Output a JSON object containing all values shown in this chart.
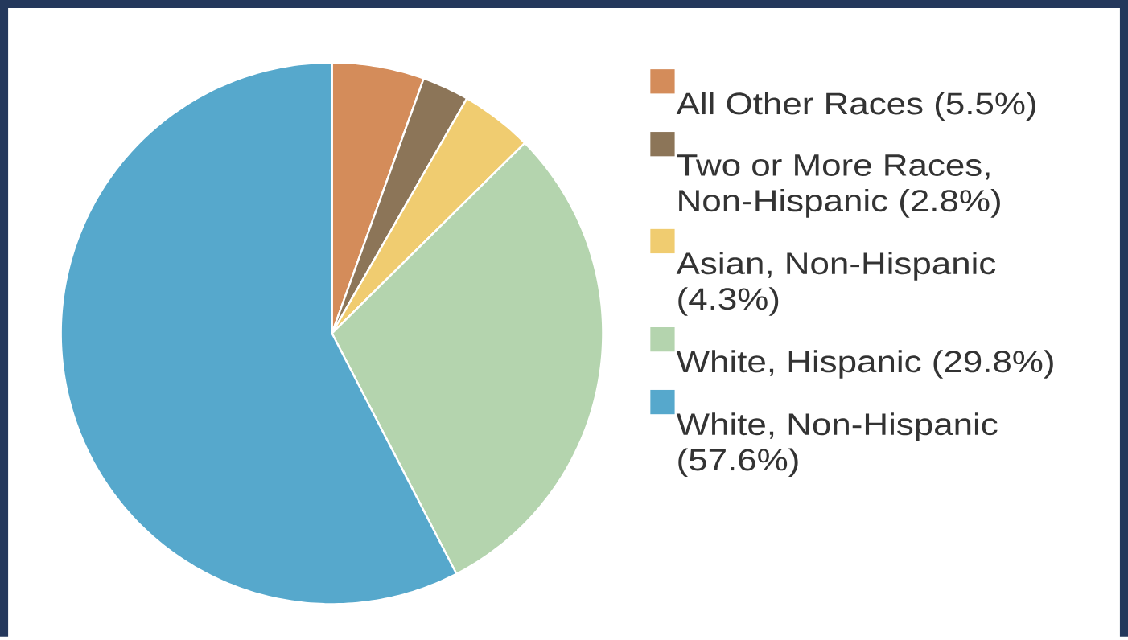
{
  "chart_data": {
    "type": "pie",
    "categories": [
      "All Other Races (5.5%)",
      "Two or More Races, Non-Hispanic (2.8%)",
      "Asian, Non-Hispanic (4.3%)",
      "White, Hispanic (29.8%)",
      "White, Non-Hispanic (57.6%)"
    ],
    "values": [
      5.5,
      2.8,
      4.3,
      29.8,
      57.6
    ],
    "colors": [
      "#d48c5a",
      "#8c7558",
      "#f0cc70",
      "#b4d4ae",
      "#56a8cc"
    ],
    "legend": "right"
  }
}
